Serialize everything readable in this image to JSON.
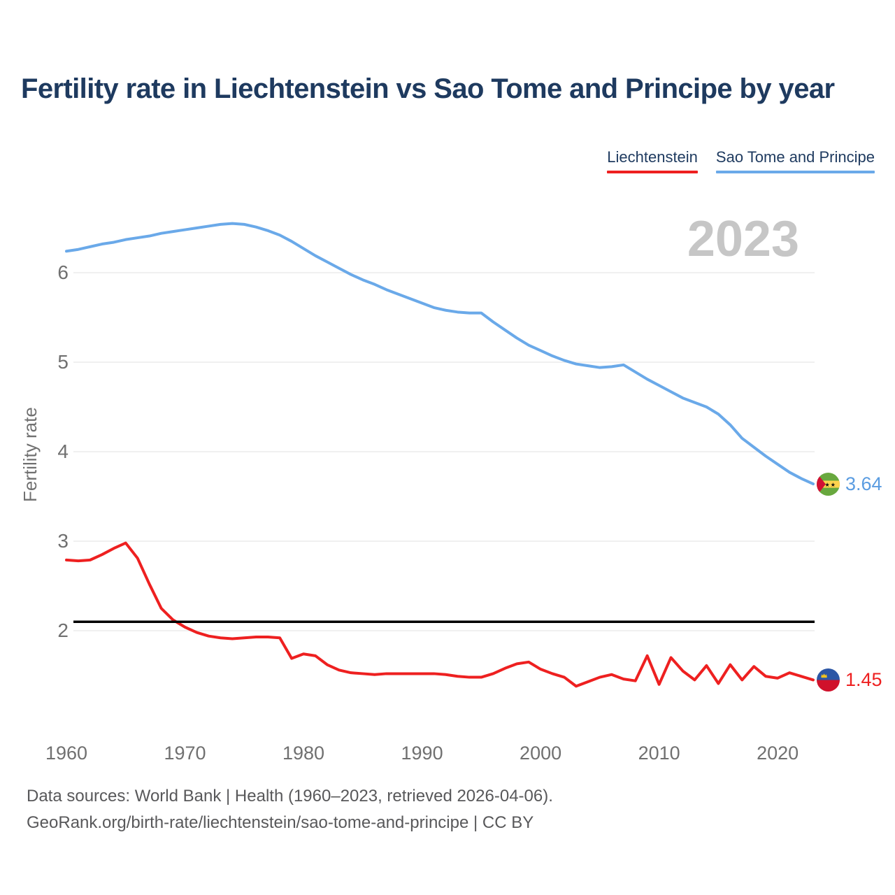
{
  "title": "Fertility rate in Liechtenstein vs Sao Tome and Principe by year",
  "watermark_year": "2023",
  "legend": [
    {
      "label": "Liechtenstein",
      "color": "#ee2020"
    },
    {
      "label": "Sao Tome and Principe",
      "color": "#6aa9e9"
    }
  ],
  "y_axis": {
    "label": "Fertility rate",
    "ticks": [
      2,
      3,
      4,
      5,
      6
    ]
  },
  "x_axis": {
    "ticks": [
      1960,
      1970,
      1980,
      1990,
      2000,
      2010,
      2020
    ]
  },
  "reference_line": {
    "value": 2.1,
    "color": "#000000"
  },
  "footer": {
    "line1": "Data sources: World Bank | Health (1960–2023, retrieved 2026-04-06).",
    "line2": "GeoRank.org/birth-rate/liechtenstein/sao-tome-and-principe | CC BY"
  },
  "colors": {
    "liechtenstein_line": "#ee2020",
    "sao_tome_line": "#6aa9e9",
    "grid": "#ececec",
    "axis_text": "#707070",
    "title_text": "#1e3a5f",
    "watermark": "#c6c6c6"
  },
  "chart_data": {
    "type": "line",
    "title": "Fertility rate in Liechtenstein vs Sao Tome and Principe by year",
    "xlabel": "",
    "ylabel": "Fertility rate",
    "x_range": [
      1960,
      2023
    ],
    "ylim": [
      1.2,
      6.8
    ],
    "grid": "horizontal",
    "legend_position": "top-right",
    "annotations": {
      "watermark": "2023",
      "replacement_rate_line": 2.1
    },
    "x": [
      1960,
      1961,
      1962,
      1963,
      1964,
      1965,
      1966,
      1967,
      1968,
      1969,
      1970,
      1971,
      1972,
      1973,
      1974,
      1975,
      1976,
      1977,
      1978,
      1979,
      1980,
      1981,
      1982,
      1983,
      1984,
      1985,
      1986,
      1987,
      1988,
      1989,
      1990,
      1991,
      1992,
      1993,
      1994,
      1995,
      1996,
      1997,
      1998,
      1999,
      2000,
      2001,
      2002,
      2003,
      2004,
      2005,
      2006,
      2007,
      2008,
      2009,
      2010,
      2011,
      2012,
      2013,
      2014,
      2015,
      2016,
      2017,
      2018,
      2019,
      2020,
      2021,
      2022,
      2023
    ],
    "series": [
      {
        "name": "Liechtenstein",
        "slug": "liechtenstein",
        "color": "#ee2020",
        "label_color": "#ee2020",
        "end_label": "1.45",
        "values": [
          2.79,
          2.78,
          2.79,
          2.85,
          2.92,
          2.98,
          2.81,
          2.52,
          2.25,
          2.12,
          2.04,
          1.98,
          1.94,
          1.92,
          1.91,
          1.92,
          1.93,
          1.93,
          1.92,
          1.69,
          1.74,
          1.72,
          1.62,
          1.56,
          1.53,
          1.52,
          1.51,
          1.52,
          1.52,
          1.52,
          1.52,
          1.52,
          1.51,
          1.49,
          1.48,
          1.48,
          1.52,
          1.58,
          1.63,
          1.65,
          1.57,
          1.52,
          1.48,
          1.38,
          1.43,
          1.48,
          1.51,
          1.46,
          1.44,
          1.72,
          1.4,
          1.7,
          1.55,
          1.45,
          1.61,
          1.41,
          1.62,
          1.45,
          1.6,
          1.49,
          1.47,
          1.53,
          1.49,
          1.45
        ]
      },
      {
        "name": "Sao Tome and Principe",
        "slug": "sao-tome",
        "color": "#6aa9e9",
        "label_color": "#5a9ce1",
        "end_label": "3.64",
        "values": [
          6.24,
          6.26,
          6.29,
          6.32,
          6.34,
          6.37,
          6.39,
          6.41,
          6.44,
          6.46,
          6.48,
          6.5,
          6.52,
          6.54,
          6.55,
          6.54,
          6.51,
          6.47,
          6.42,
          6.35,
          6.27,
          6.19,
          6.12,
          6.05,
          5.98,
          5.92,
          5.87,
          5.81,
          5.76,
          5.71,
          5.66,
          5.61,
          5.58,
          5.56,
          5.55,
          5.55,
          5.45,
          5.36,
          5.27,
          5.19,
          5.13,
          5.07,
          5.02,
          4.98,
          4.96,
          4.94,
          4.95,
          4.97,
          4.89,
          4.81,
          4.74,
          4.67,
          4.6,
          4.55,
          4.5,
          4.42,
          4.3,
          4.15,
          4.05,
          3.95,
          3.86,
          3.77,
          3.7,
          3.64
        ]
      }
    ]
  }
}
